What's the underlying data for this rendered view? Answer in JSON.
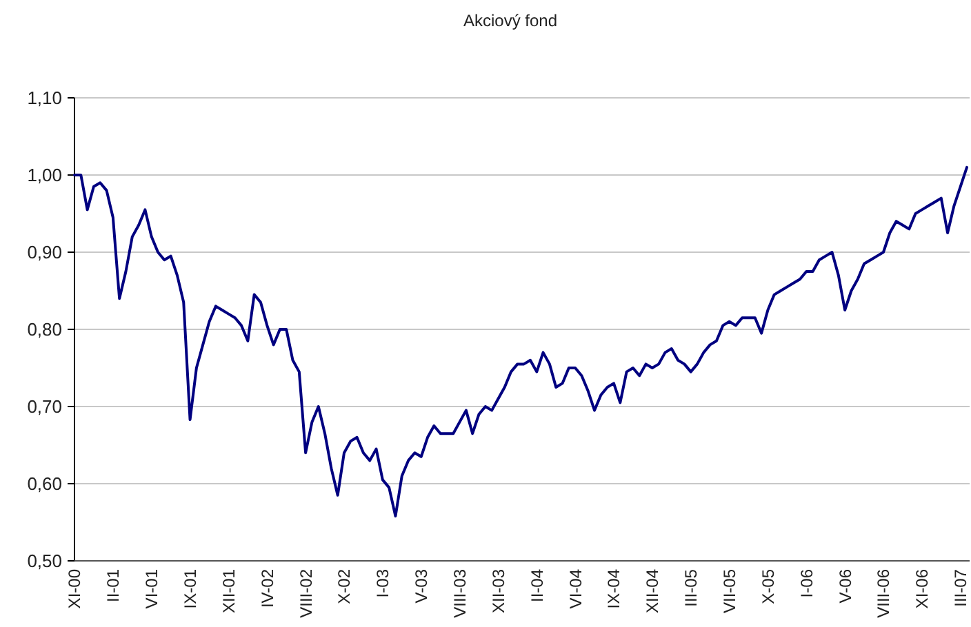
{
  "chart_data": {
    "type": "line",
    "title": "Akciový fond",
    "categories": [
      "XI-00",
      null,
      null,
      null,
      null,
      null,
      "II-01",
      null,
      null,
      null,
      null,
      null,
      "VI-01",
      null,
      null,
      null,
      null,
      null,
      "IX-01",
      null,
      null,
      null,
      null,
      null,
      "XII-01",
      null,
      null,
      null,
      null,
      null,
      "IV-02",
      null,
      null,
      null,
      null,
      null,
      "VIII-02",
      null,
      null,
      null,
      null,
      null,
      "X-02",
      null,
      null,
      null,
      null,
      null,
      "I-03",
      null,
      null,
      null,
      null,
      null,
      "V-03",
      null,
      null,
      null,
      null,
      null,
      "VIII-03",
      null,
      null,
      null,
      null,
      null,
      "XII-03",
      null,
      null,
      null,
      null,
      null,
      "II-04",
      null,
      null,
      null,
      null,
      null,
      "VI-04",
      null,
      null,
      null,
      null,
      null,
      "IX-04",
      null,
      null,
      null,
      null,
      null,
      "XII-04",
      null,
      null,
      null,
      null,
      null,
      "III-05",
      null,
      null,
      null,
      null,
      null,
      "VII-05",
      null,
      null,
      null,
      null,
      null,
      "X-05",
      null,
      null,
      null,
      null,
      null,
      "I-06",
      null,
      null,
      null,
      null,
      null,
      "V-06",
      null,
      null,
      null,
      null,
      null,
      "VIII-06",
      null,
      null,
      null,
      null,
      null,
      "XI-06",
      null,
      null,
      null,
      null,
      null,
      "III-07",
      null
    ],
    "series": [
      {
        "color": "#000080",
        "values": [
          1.0,
          1.0,
          0.955,
          0.985,
          0.99,
          0.98,
          0.945,
          0.84,
          0.875,
          0.92,
          0.935,
          0.955,
          0.92,
          0.9,
          0.89,
          0.895,
          0.87,
          0.835,
          0.683,
          0.75,
          0.78,
          0.81,
          0.83,
          0.825,
          0.82,
          0.815,
          0.805,
          0.785,
          0.845,
          0.835,
          0.805,
          0.78,
          0.8,
          0.8,
          0.76,
          0.745,
          0.64,
          0.68,
          0.7,
          0.665,
          0.62,
          0.585,
          0.64,
          0.655,
          0.66,
          0.64,
          0.63,
          0.645,
          0.605,
          0.595,
          0.558,
          0.61,
          0.63,
          0.64,
          0.635,
          0.66,
          0.675,
          0.665,
          0.665,
          0.665,
          0.68,
          0.695,
          0.665,
          0.69,
          0.7,
          0.695,
          0.71,
          0.725,
          0.745,
          0.755,
          0.755,
          0.76,
          0.745,
          0.77,
          0.755,
          0.725,
          0.73,
          0.75,
          0.75,
          0.74,
          0.72,
          0.695,
          0.715,
          0.725,
          0.73,
          0.705,
          0.745,
          0.75,
          0.74,
          0.755,
          0.75,
          0.755,
          0.77,
          0.775,
          0.76,
          0.755,
          0.745,
          0.755,
          0.77,
          0.78,
          0.785,
          0.805,
          0.81,
          0.805,
          0.815,
          0.815,
          0.815,
          0.795,
          0.825,
          0.845,
          0.85,
          0.855,
          0.86,
          0.865,
          0.875,
          0.875,
          0.89,
          0.895,
          0.9,
          0.87,
          0.825,
          0.85,
          0.865,
          0.885,
          0.89,
          0.895,
          0.9,
          0.925,
          0.94,
          0.935,
          0.93,
          0.95,
          0.955,
          0.96,
          0.965,
          0.97,
          0.925,
          0.96,
          0.985,
          1.01
        ]
      }
    ],
    "ylim": [
      0.5,
      1.1
    ],
    "yticks": [
      {
        "value": 0.5,
        "label": "0,50"
      },
      {
        "value": 0.6,
        "label": "0,60"
      },
      {
        "value": 0.7,
        "label": "0,70"
      },
      {
        "value": 0.8,
        "label": "0,80"
      },
      {
        "value": 0.9,
        "label": "0,90"
      },
      {
        "value": 1.0,
        "label": "1,00"
      },
      {
        "value": 1.1,
        "label": "1,10"
      }
    ],
    "grid": "y",
    "marker": "none",
    "line_style": "solid"
  }
}
